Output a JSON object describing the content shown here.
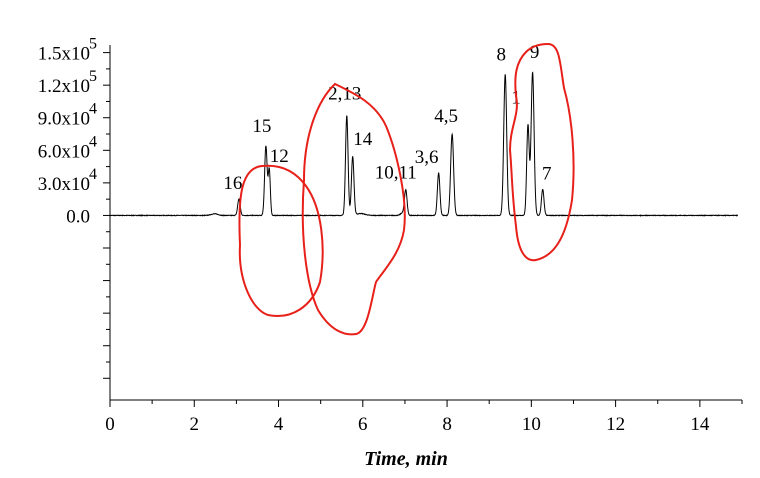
{
  "colors": {
    "trace": "#000000",
    "annotation": "#e8201a",
    "axis": "#000000"
  },
  "chart_data": {
    "type": "line",
    "title": "",
    "xlabel": "Time, min",
    "ylabel": "",
    "xlim": [
      0,
      15
    ],
    "ylim": [
      -170000,
      157000
    ],
    "grid": false,
    "legend": "none",
    "x_ticks": [
      {
        "value": 0,
        "label": "0"
      },
      {
        "value": 2,
        "label": "2"
      },
      {
        "value": 4,
        "label": "4"
      },
      {
        "value": 6,
        "label": "6"
      },
      {
        "value": 8,
        "label": "8"
      },
      {
        "value": 10,
        "label": "10"
      },
      {
        "value": 12,
        "label": "12"
      },
      {
        "value": 14,
        "label": "14"
      }
    ],
    "y_ticks": [
      {
        "value": 0,
        "label": "0.0",
        "exp": ""
      },
      {
        "value": 30000,
        "label": "3.0x10",
        "exp": "4"
      },
      {
        "value": 60000,
        "label": "6.0x10",
        "exp": "4"
      },
      {
        "value": 90000,
        "label": "9.0x10",
        "exp": "4"
      },
      {
        "value": 120000,
        "label": "1.2x10",
        "exp": "5"
      },
      {
        "value": 150000,
        "label": "1.5x10",
        "exp": "5"
      }
    ],
    "baseline": 0,
    "peaks": [
      {
        "x": 3.06,
        "y": 15000,
        "w": 0.03,
        "label": "16"
      },
      {
        "x": 3.7,
        "y": 64000,
        "w": 0.03,
        "label": "15"
      },
      {
        "x": 3.78,
        "y": 42000,
        "w": 0.025,
        "label": "12"
      },
      {
        "x": 5.62,
        "y": 92000,
        "w": 0.03,
        "label": "2,13"
      },
      {
        "x": 5.76,
        "y": 54000,
        "w": 0.03,
        "label": "14"
      },
      {
        "x": 7.02,
        "y": 23000,
        "w": 0.03,
        "label": "10,11"
      },
      {
        "x": 7.8,
        "y": 39000,
        "w": 0.03,
        "label": "3,6"
      },
      {
        "x": 8.12,
        "y": 75000,
        "w": 0.035,
        "label": "4,5"
      },
      {
        "x": 9.38,
        "y": 130000,
        "w": 0.035,
        "label": "8"
      },
      {
        "x": 9.92,
        "y": 83000,
        "w": 0.03,
        "label": "1"
      },
      {
        "x": 10.03,
        "y": 132000,
        "w": 0.035,
        "label": "9"
      },
      {
        "x": 10.27,
        "y": 24000,
        "w": 0.03,
        "label": "7"
      }
    ],
    "minor_bumps": [
      {
        "x": 2.48,
        "y": 1500,
        "w": 0.08
      },
      {
        "x": 6.95,
        "y": 2500,
        "w": 0.05
      },
      {
        "x": 5.95,
        "y": 1800,
        "w": 0.1
      }
    ],
    "annotations": [
      {
        "shape": "hand-drawn-loop",
        "color": "red",
        "around": [
          "15",
          "12"
        ]
      },
      {
        "shape": "hand-drawn-loop",
        "color": "red",
        "around": [
          "2,13",
          "14"
        ]
      },
      {
        "shape": "hand-drawn-loop",
        "color": "red",
        "around": [
          "8",
          "9",
          "1"
        ]
      }
    ]
  }
}
